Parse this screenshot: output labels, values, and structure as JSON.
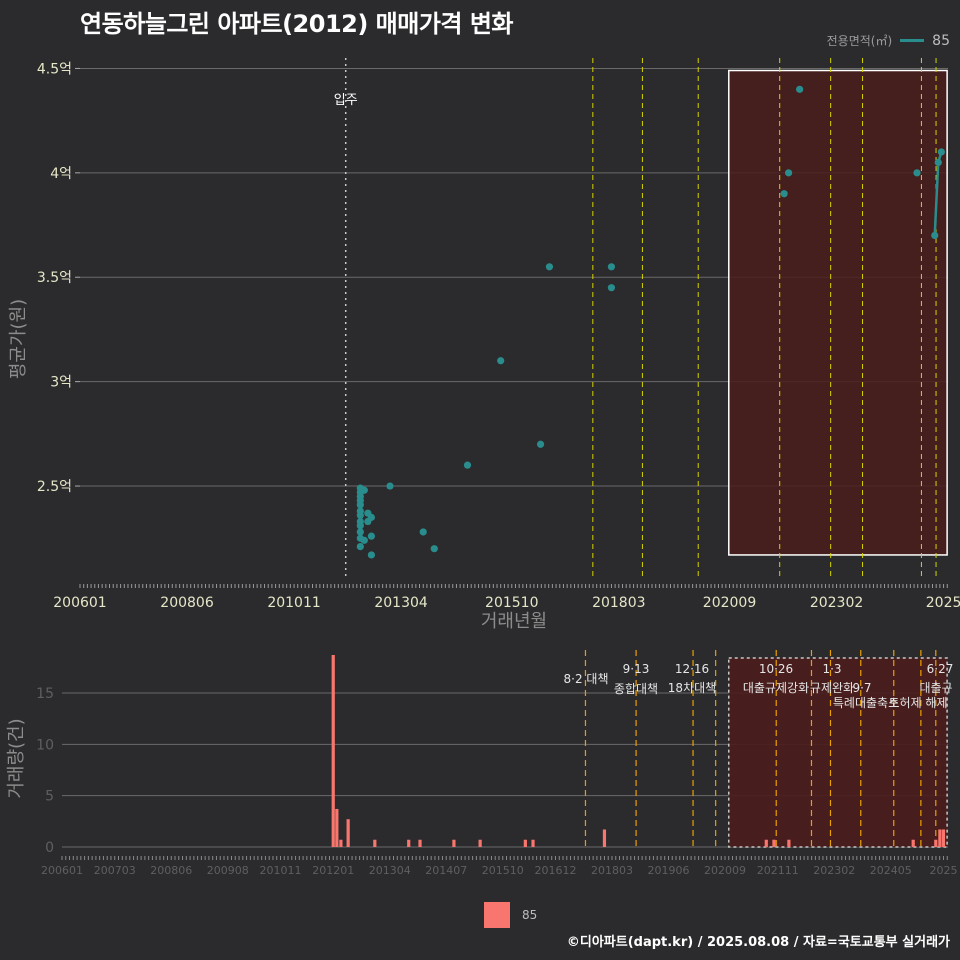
{
  "title": "연동하늘그린 아파트(2012) 매매가격 변화",
  "legend": {
    "title": "전용면적(㎡)",
    "label": "85"
  },
  "bar_legend": {
    "label": "85"
  },
  "footer": "©디아파트(dapt.kr) / 2025.08.08 / 자료=국토교통부 실거래가",
  "colors": {
    "background": "#2b2b2d",
    "point": "#2a8d8d",
    "bar": "#f8766d",
    "policy_line": "#d4d400",
    "policy_line_bar": "#e8a000",
    "highlight": "#4a1c1c"
  },
  "chart_data": [
    {
      "type": "scatter",
      "xlabel": "거래년월",
      "ylabel": "평균가(원)",
      "xlim": [
        2006.0,
        2025.6
      ],
      "ylim": [
        2.05,
        4.55
      ],
      "x_ticks": [
        {
          "x": 2006.0,
          "label": "200601"
        },
        {
          "x": 2008.4167,
          "label": "200806"
        },
        {
          "x": 2010.8333,
          "label": "201011"
        },
        {
          "x": 2013.25,
          "label": "201304"
        },
        {
          "x": 2015.75,
          "label": "201510"
        },
        {
          "x": 2018.1667,
          "label": "201803"
        },
        {
          "x": 2020.6667,
          "label": "202009"
        },
        {
          "x": 2023.0833,
          "label": "202302"
        },
        {
          "x": 2025.5,
          "label": "2025"
        }
      ],
      "y_ticks": [
        {
          "y": 2.5,
          "label": "2.5억"
        },
        {
          "y": 3.0,
          "label": "3억"
        },
        {
          "y": 3.5,
          "label": "3.5억"
        },
        {
          "y": 4.0,
          "label": "4억"
        },
        {
          "y": 4.5,
          "label": "4.5억"
        }
      ],
      "move_in": {
        "x": 2012.0,
        "label": "입주"
      },
      "policy_lines": [
        2017.58,
        2018.7,
        2019.96,
        2021.8,
        2022.95,
        2023.67,
        2025.0,
        2025.33
      ],
      "highlight": {
        "x0": 2020.65,
        "x1": 2025.58,
        "y0": 2.17,
        "y1": 4.49
      },
      "series": [
        {
          "name": "85",
          "points": [
            [
              2012.33,
              2.21
            ],
            [
              2012.33,
              2.25
            ],
            [
              2012.33,
              2.28
            ],
            [
              2012.33,
              2.31
            ],
            [
              2012.33,
              2.33
            ],
            [
              2012.33,
              2.36
            ],
            [
              2012.33,
              2.38
            ],
            [
              2012.33,
              2.41
            ],
            [
              2012.33,
              2.43
            ],
            [
              2012.33,
              2.45
            ],
            [
              2012.33,
              2.47
            ],
            [
              2012.33,
              2.49
            ],
            [
              2012.42,
              2.24
            ],
            [
              2012.42,
              2.48
            ],
            [
              2012.5,
              2.33
            ],
            [
              2012.5,
              2.37
            ],
            [
              2012.58,
              2.17
            ],
            [
              2012.58,
              2.26
            ],
            [
              2012.58,
              2.35
            ],
            [
              2013.0,
              2.5
            ],
            [
              2013.75,
              2.28
            ],
            [
              2014.0,
              2.2
            ],
            [
              2014.75,
              2.6
            ],
            [
              2015.5,
              3.1
            ],
            [
              2016.4,
              2.7
            ],
            [
              2016.6,
              3.55
            ],
            [
              2018.0,
              3.55
            ],
            [
              2018.0,
              3.45
            ],
            [
              2021.9,
              3.9
            ],
            [
              2022.0,
              4.0
            ],
            [
              2022.25,
              4.4
            ],
            [
              2024.9,
              4.0
            ],
            [
              2025.3,
              3.7
            ],
            [
              2025.38,
              4.05
            ],
            [
              2025.45,
              4.1
            ]
          ]
        }
      ]
    },
    {
      "type": "bar",
      "xlabel": "",
      "ylabel": "거래량(건)",
      "xlim": [
        2006.0,
        2025.6
      ],
      "ylim": [
        0,
        19
      ],
      "x_ticks": [
        {
          "x": 2006.0,
          "label": "200601"
        },
        {
          "x": 2007.1667,
          "label": "200703"
        },
        {
          "x": 2008.4167,
          "label": "200806"
        },
        {
          "x": 2009.6667,
          "label": "200908"
        },
        {
          "x": 2010.8333,
          "label": "201011"
        },
        {
          "x": 2012.0,
          "label": "201201"
        },
        {
          "x": 2013.25,
          "label": "201304"
        },
        {
          "x": 2014.5,
          "label": "201407"
        },
        {
          "x": 2015.75,
          "label": "201510"
        },
        {
          "x": 2016.9167,
          "label": "201612"
        },
        {
          "x": 2018.1667,
          "label": "201803"
        },
        {
          "x": 2019.4167,
          "label": "201906"
        },
        {
          "x": 2020.6667,
          "label": "202009"
        },
        {
          "x": 2021.8333,
          "label": "202111"
        },
        {
          "x": 2023.0833,
          "label": "202302"
        },
        {
          "x": 2024.3333,
          "label": "202405"
        },
        {
          "x": 2025.5,
          "label": "2025"
        }
      ],
      "y_ticks": [
        {
          "y": 0,
          "label": "0"
        },
        {
          "y": 5,
          "label": "5"
        },
        {
          "y": 10,
          "label": "10"
        },
        {
          "y": 15,
          "label": "15"
        }
      ],
      "highlight": {
        "x0": 2020.75,
        "x1": 2025.58,
        "y0": 0,
        "y1": 19
      },
      "policies": [
        {
          "x": 2017.58,
          "date": "8·2 대책",
          "name": ""
        },
        {
          "x": 2018.7,
          "date": "9·13",
          "name": "종합대책"
        },
        {
          "x": 2019.96,
          "date": "12·16",
          "name": "18차대책"
        },
        {
          "x": 2020.46,
          "date": "",
          "name": ""
        },
        {
          "x": 2021.8,
          "date": "10·26",
          "name": "대출규제강화"
        },
        {
          "x": 2022.58,
          "date": "",
          "name": ""
        },
        {
          "x": 2023.0,
          "date": "1·3",
          "name": "규제완화"
        },
        {
          "x": 2023.67,
          "date": "9·7",
          "name": "특례대출축소"
        },
        {
          "x": 2024.4,
          "date": "",
          "name": "토허제 해제"
        },
        {
          "x": 2025.0,
          "date": "6·27",
          "name": "대출규"
        },
        {
          "x": 2025.33,
          "date": "",
          "name": ""
        }
      ],
      "series": [
        {
          "name": "85",
          "bars": [
            [
              2012.0,
              19
            ],
            [
              2012.08,
              4
            ],
            [
              2012.17,
              1
            ],
            [
              2012.33,
              3
            ],
            [
              2012.92,
              1
            ],
            [
              2013.67,
              1
            ],
            [
              2013.92,
              1
            ],
            [
              2014.67,
              1
            ],
            [
              2015.25,
              1
            ],
            [
              2016.25,
              1
            ],
            [
              2016.42,
              1
            ],
            [
              2018.0,
              2
            ],
            [
              2021.58,
              1
            ],
            [
              2021.75,
              1
            ],
            [
              2022.08,
              1
            ],
            [
              2024.83,
              1
            ],
            [
              2025.33,
              1
            ],
            [
              2025.42,
              2
            ],
            [
              2025.5,
              2
            ]
          ]
        }
      ]
    }
  ]
}
